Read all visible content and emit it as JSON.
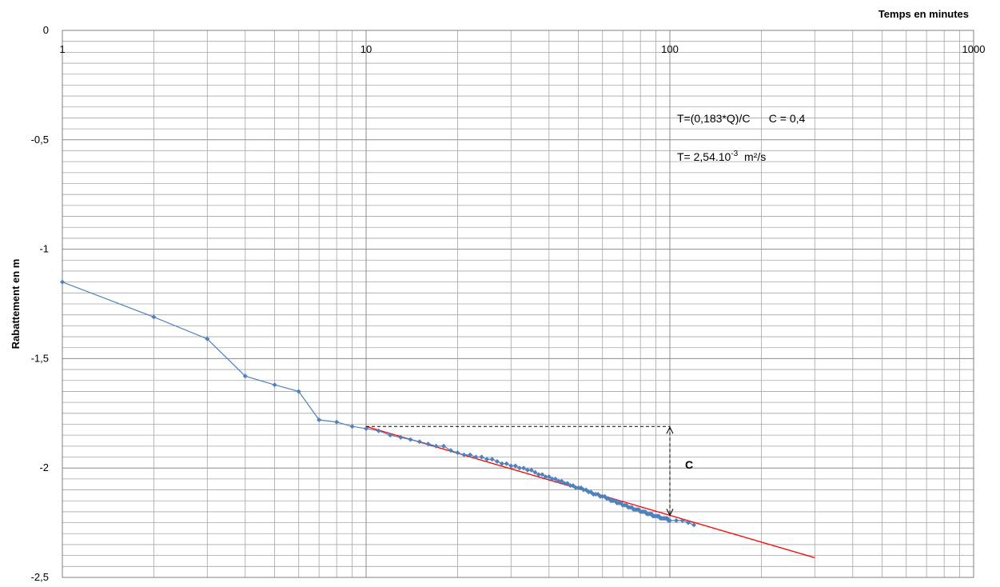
{
  "chart_data": {
    "type": "scatter",
    "x_scale": "log",
    "xlabel": "Temps en minutes",
    "ylabel": "Rabattement en m",
    "xlim": [
      1,
      1000
    ],
    "ylim": [
      -2.5,
      0
    ],
    "x_ticks": [
      "1",
      "10",
      "100",
      "1000"
    ],
    "y_ticks": [
      "0",
      "-0,5",
      "-1",
      "-1,5",
      "-2",
      "-2,5"
    ],
    "grid": true,
    "series": [
      {
        "color": "#4f81bd",
        "marker": "diamond",
        "x": [
          1,
          2,
          3,
          4,
          5,
          6,
          7,
          8,
          9,
          10,
          11,
          12,
          13,
          14,
          15,
          16,
          17,
          18,
          19,
          20,
          21,
          22,
          23,
          24,
          25,
          26,
          27,
          28,
          29,
          30,
          31,
          32,
          33,
          34,
          35,
          36,
          37,
          38,
          39,
          40,
          41,
          42,
          43,
          44,
          45,
          46,
          47,
          48,
          49,
          50,
          51,
          52,
          53,
          54,
          55,
          56,
          57,
          58,
          59,
          60,
          61,
          62,
          63,
          64,
          65,
          66,
          67,
          68,
          69,
          70,
          71,
          72,
          73,
          74,
          75,
          76,
          77,
          78,
          79,
          80,
          81,
          82,
          83,
          84,
          85,
          86,
          87,
          88,
          89,
          90,
          91,
          92,
          93,
          94,
          95,
          96,
          97,
          98,
          99,
          100,
          105,
          110,
          115,
          120
        ],
        "y": [
          -1.15,
          -1.31,
          -1.41,
          -1.58,
          -1.62,
          -1.65,
          -1.78,
          -1.79,
          -1.81,
          -1.82,
          -1.83,
          -1.85,
          -1.86,
          -1.87,
          -1.88,
          -1.89,
          -1.9,
          -1.9,
          -1.92,
          -1.93,
          -1.94,
          -1.94,
          -1.95,
          -1.95,
          -1.96,
          -1.96,
          -1.97,
          -1.98,
          -1.98,
          -1.99,
          -1.99,
          -2.0,
          -2.0,
          -2.01,
          -2.01,
          -2.02,
          -2.03,
          -2.03,
          -2.04,
          -2.04,
          -2.05,
          -2.05,
          -2.06,
          -2.06,
          -2.07,
          -2.07,
          -2.08,
          -2.08,
          -2.09,
          -2.09,
          -2.09,
          -2.1,
          -2.1,
          -2.11,
          -2.11,
          -2.12,
          -2.12,
          -2.12,
          -2.13,
          -2.13,
          -2.13,
          -2.14,
          -2.14,
          -2.15,
          -2.15,
          -2.15,
          -2.16,
          -2.16,
          -2.16,
          -2.17,
          -2.17,
          -2.17,
          -2.18,
          -2.18,
          -2.18,
          -2.19,
          -2.19,
          -2.19,
          -2.19,
          -2.2,
          -2.2,
          -2.2,
          -2.2,
          -2.21,
          -2.21,
          -2.21,
          -2.21,
          -2.22,
          -2.22,
          -2.22,
          -2.22,
          -2.22,
          -2.23,
          -2.23,
          -2.23,
          -2.23,
          -2.23,
          -2.23,
          -2.24,
          -2.24,
          -2.24,
          -2.24,
          -2.25,
          -2.26
        ]
      },
      {
        "color": "#ff0000",
        "marker": "none",
        "x": [
          10,
          300
        ],
        "y": [
          -1.81,
          -2.41
        ]
      }
    ],
    "annotations": [
      {
        "text": "T=(0,183*Q)/C      C = 0,4"
      },
      {
        "text": "T= 2,54.10",
        "sup": "-3",
        "text_after": "  m²/s"
      },
      {
        "text": "C"
      }
    ],
    "construction": {
      "horizontal_dashed": {
        "x": [
          10,
          100
        ],
        "y": -1.81
      },
      "vertical_dashed_arrow": {
        "x": 100,
        "y": [
          -1.81,
          -2.22
        ]
      }
    }
  }
}
